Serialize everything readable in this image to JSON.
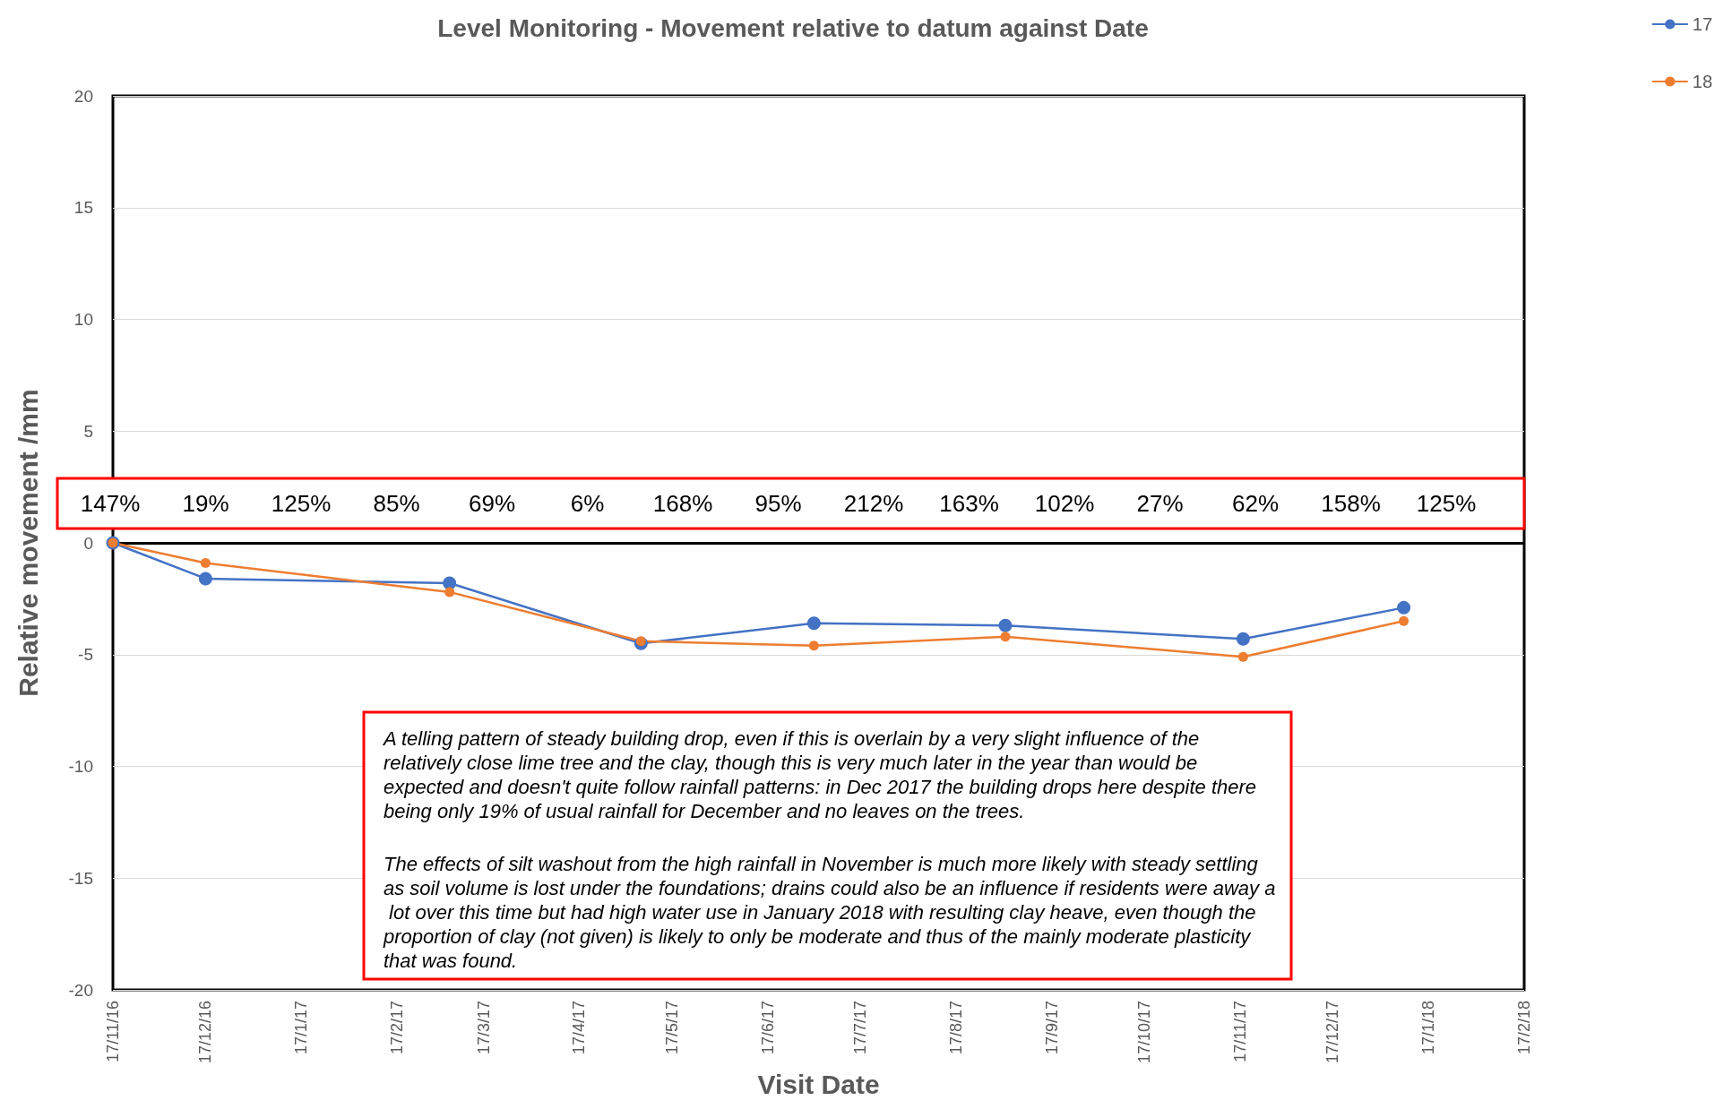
{
  "chart_data": {
    "type": "line",
    "title": "Level Monitoring - Movement relative to datum against Date",
    "xlabel": "Visit Date",
    "ylabel": "Relative movement /mm",
    "x": [
      "2016-11-17",
      "2016-12-17",
      "2017-03-06",
      "2017-05-07",
      "2017-07-02",
      "2017-09-02",
      "2017-11-18",
      "2018-01-09"
    ],
    "series": [
      {
        "name": "17",
        "color": "#4472c4",
        "values": [
          0,
          -1.6,
          -1.8,
          -4.5,
          -3.6,
          -3.7,
          -4.3,
          -2.9
        ]
      },
      {
        "name": "18",
        "color": "#ed7d31",
        "values": [
          0,
          -0.9,
          -2.2,
          -4.4,
          -4.6,
          -4.2,
          -5.1,
          -3.5
        ]
      }
    ],
    "xlim": [
      "2016-11-17",
      "2018-02-17"
    ],
    "xticks": [
      {
        "value": "2016-11-17",
        "label": "17/11/16"
      },
      {
        "value": "2016-12-17",
        "label": "17/12/16"
      },
      {
        "value": "2017-01-17",
        "label": "17/1/17"
      },
      {
        "value": "2017-02-17",
        "label": "17/2/17"
      },
      {
        "value": "2017-03-17",
        "label": "17/3/17"
      },
      {
        "value": "2017-04-17",
        "label": "17/4/17"
      },
      {
        "value": "2017-05-17",
        "label": "17/5/17"
      },
      {
        "value": "2017-06-17",
        "label": "17/6/17"
      },
      {
        "value": "2017-07-17",
        "label": "17/7/17"
      },
      {
        "value": "2017-08-17",
        "label": "17/8/17"
      },
      {
        "value": "2017-09-17",
        "label": "17/9/17"
      },
      {
        "value": "2017-10-17",
        "label": "17/10/17"
      },
      {
        "value": "2017-11-17",
        "label": "17/11/17"
      },
      {
        "value": "2017-12-17",
        "label": "17/12/17"
      },
      {
        "value": "2018-01-17",
        "label": "17/1/18"
      },
      {
        "value": "2018-02-17",
        "label": "17/2/18"
      }
    ],
    "ylim": [
      -20,
      20
    ],
    "yticks": [
      -20,
      -15,
      -10,
      -5,
      0,
      5,
      10,
      15,
      20
    ],
    "grid": "y",
    "legend": "top right",
    "marker": "circle",
    "line_style": "solid",
    "ref_lines": [
      {
        "axis": "y",
        "value": 0,
        "color": "#000000"
      }
    ],
    "annotations": [
      "147%",
      "19%",
      "125%",
      "85%",
      "69%",
      "6%",
      "168%",
      "95%",
      "212%",
      "163%",
      "102%",
      "27%",
      "62%",
      "158%",
      "125%",
      "A telling pattern of steady building drop, even if this is overlain by a very slight influence of the relatively close lime tree and the clay, though this is very much later in the year than would be expected and doesn't quite follow rainfall patterns: in Dec 2017 the building drops here despite there being only 19% of usual rainfall for December and no leaves on the trees.",
      "The effects of silt washout from the high rainfall in November is much more likely with steady settling as soil volume is lost under the foundations; drains could also be an influence if residents were away a lot over this time but had high water use in January 2018 with resulting clay heave, even though the proportion of clay (not given) is likely to only be moderate and thus of the mainly moderate plasticity that was found."
    ]
  }
}
